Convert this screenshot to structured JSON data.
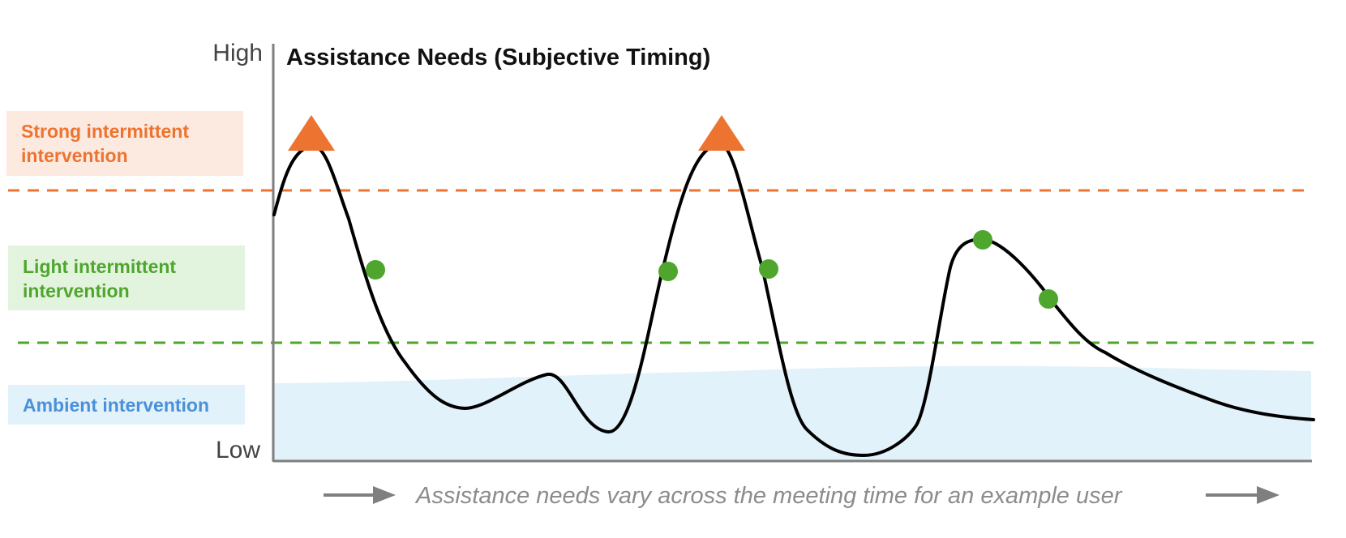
{
  "title": "Assistance Needs (Subjective Timing)",
  "axis": {
    "high_label": "High",
    "low_label": "Low"
  },
  "bands": [
    {
      "id": "strong",
      "label_lines": [
        "Strong intermittent",
        "intervention"
      ],
      "color": "#ed7430",
      "bg": "#fce9e0"
    },
    {
      "id": "light",
      "label_lines": [
        "Light intermittent",
        "intervention"
      ],
      "color": "#4ea62d",
      "bg": "#e3f4de"
    },
    {
      "id": "ambient",
      "label_lines": [
        "Ambient intervention"
      ],
      "color": "#4a90d9",
      "bg": "#e2f2fa"
    }
  ],
  "caption": "Assistance needs vary across the meeting time for an example user",
  "colors": {
    "curve": "#000000",
    "axis": "#7f7f7f",
    "strong_marker": "#ed7430",
    "light_marker": "#4ea62d",
    "ambient_fill": "#e2f2fa",
    "arrow": "#7f7f7f"
  },
  "markers": {
    "strong_count": 2,
    "light_count": 5
  }
}
